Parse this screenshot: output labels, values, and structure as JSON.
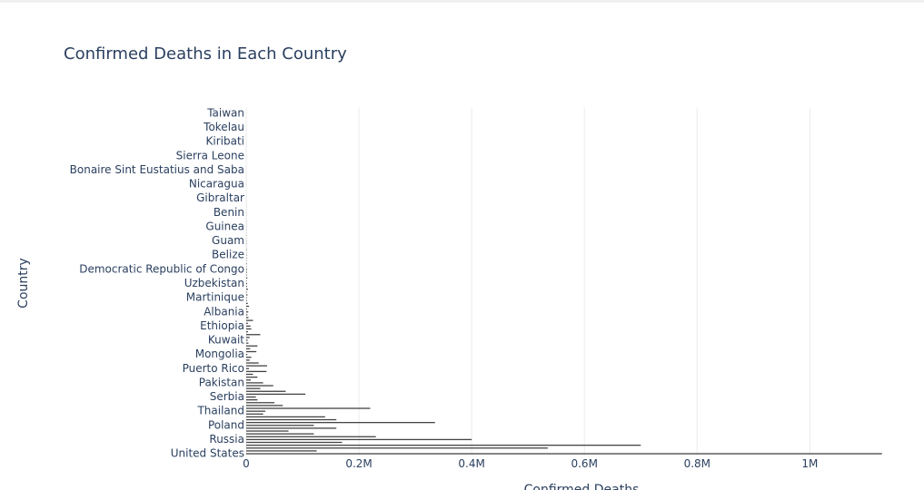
{
  "chart_data": {
    "type": "hbar",
    "title": "Confirmed Deaths in Each Country",
    "x_label": "Confirmed Deaths",
    "y_label": "Country",
    "color": "#444444",
    "grid": true,
    "xlim": [
      0,
      1130000
    ],
    "xticks": [
      0,
      {
        "value": 200000,
        "label": "0.2M"
      },
      {
        "value": 400000,
        "label": "0.4M"
      },
      {
        "value": 600000,
        "label": "0.6M"
      },
      {
        "value": 800000,
        "label": "0.8M"
      },
      {
        "value": 1000000,
        "label": "1M"
      }
    ],
    "categories": [
      "United States",
      null,
      null,
      null,
      null,
      "Russia",
      null,
      null,
      null,
      null,
      "Poland",
      null,
      null,
      null,
      null,
      "Thailand",
      null,
      null,
      null,
      null,
      "Serbia",
      null,
      null,
      null,
      null,
      "Pakistan",
      null,
      null,
      null,
      null,
      "Puerto Rico",
      null,
      null,
      null,
      null,
      "Mongolia",
      null,
      null,
      null,
      null,
      "Kuwait",
      null,
      null,
      null,
      null,
      "Ethiopia",
      null,
      null,
      null,
      null,
      "Albania",
      null,
      null,
      null,
      null,
      "Martinique",
      null,
      null,
      null,
      null,
      "Uzbekistan",
      null,
      null,
      null,
      null,
      "Democratic Republic of Congo",
      null,
      null,
      null,
      null,
      "Belize",
      null,
      null,
      null,
      null,
      "Guam",
      null,
      null,
      null,
      null,
      "Guinea",
      null,
      null,
      null,
      null,
      "Benin",
      null,
      null,
      null,
      null,
      "Gibraltar",
      null,
      null,
      null,
      null,
      "Nicaragua",
      null,
      null,
      null,
      null,
      "Bonaire Sint Eustatius and Saba",
      null,
      null,
      null,
      null,
      "Sierra Leone",
      null,
      null,
      null,
      null,
      "Kiribati",
      null,
      null,
      null,
      null,
      "Tokelau",
      null,
      null,
      null,
      null,
      "Taiwan"
    ],
    "values": [
      1128000,
      125000,
      535000,
      700000,
      170000,
      400000,
      230000,
      120000,
      75000,
      160000,
      120000,
      335000,
      160000,
      140000,
      30000,
      34000,
      220000,
      65000,
      50000,
      20000,
      17000,
      105000,
      70000,
      25000,
      48000,
      30000,
      8000,
      20000,
      12000,
      36000,
      5000,
      37000,
      22000,
      6000,
      9000,
      2000,
      18000,
      7000,
      20000,
      4000,
      2500,
      6000,
      25000,
      3000,
      9000,
      7500,
      3000,
      12000,
      4000,
      2000,
      3600,
      1500,
      5000,
      2800,
      1200,
      1100,
      2200,
      900,
      3000,
      1400,
      1600,
      700,
      2000,
      900,
      1300,
      1400,
      600,
      1000,
      500,
      800,
      700,
      400,
      900,
      300,
      600,
      420,
      250,
      350,
      200,
      380,
      440,
      150,
      300,
      120,
      250,
      160,
      100,
      200,
      90,
      140,
      110,
      80,
      60,
      70,
      50,
      245,
      40,
      30,
      35,
      25,
      37,
      20,
      15,
      18,
      12,
      126,
      10,
      8,
      6,
      9,
      24,
      5,
      4,
      3,
      2,
      0,
      1,
      1,
      0,
      0,
      14
    ]
  }
}
